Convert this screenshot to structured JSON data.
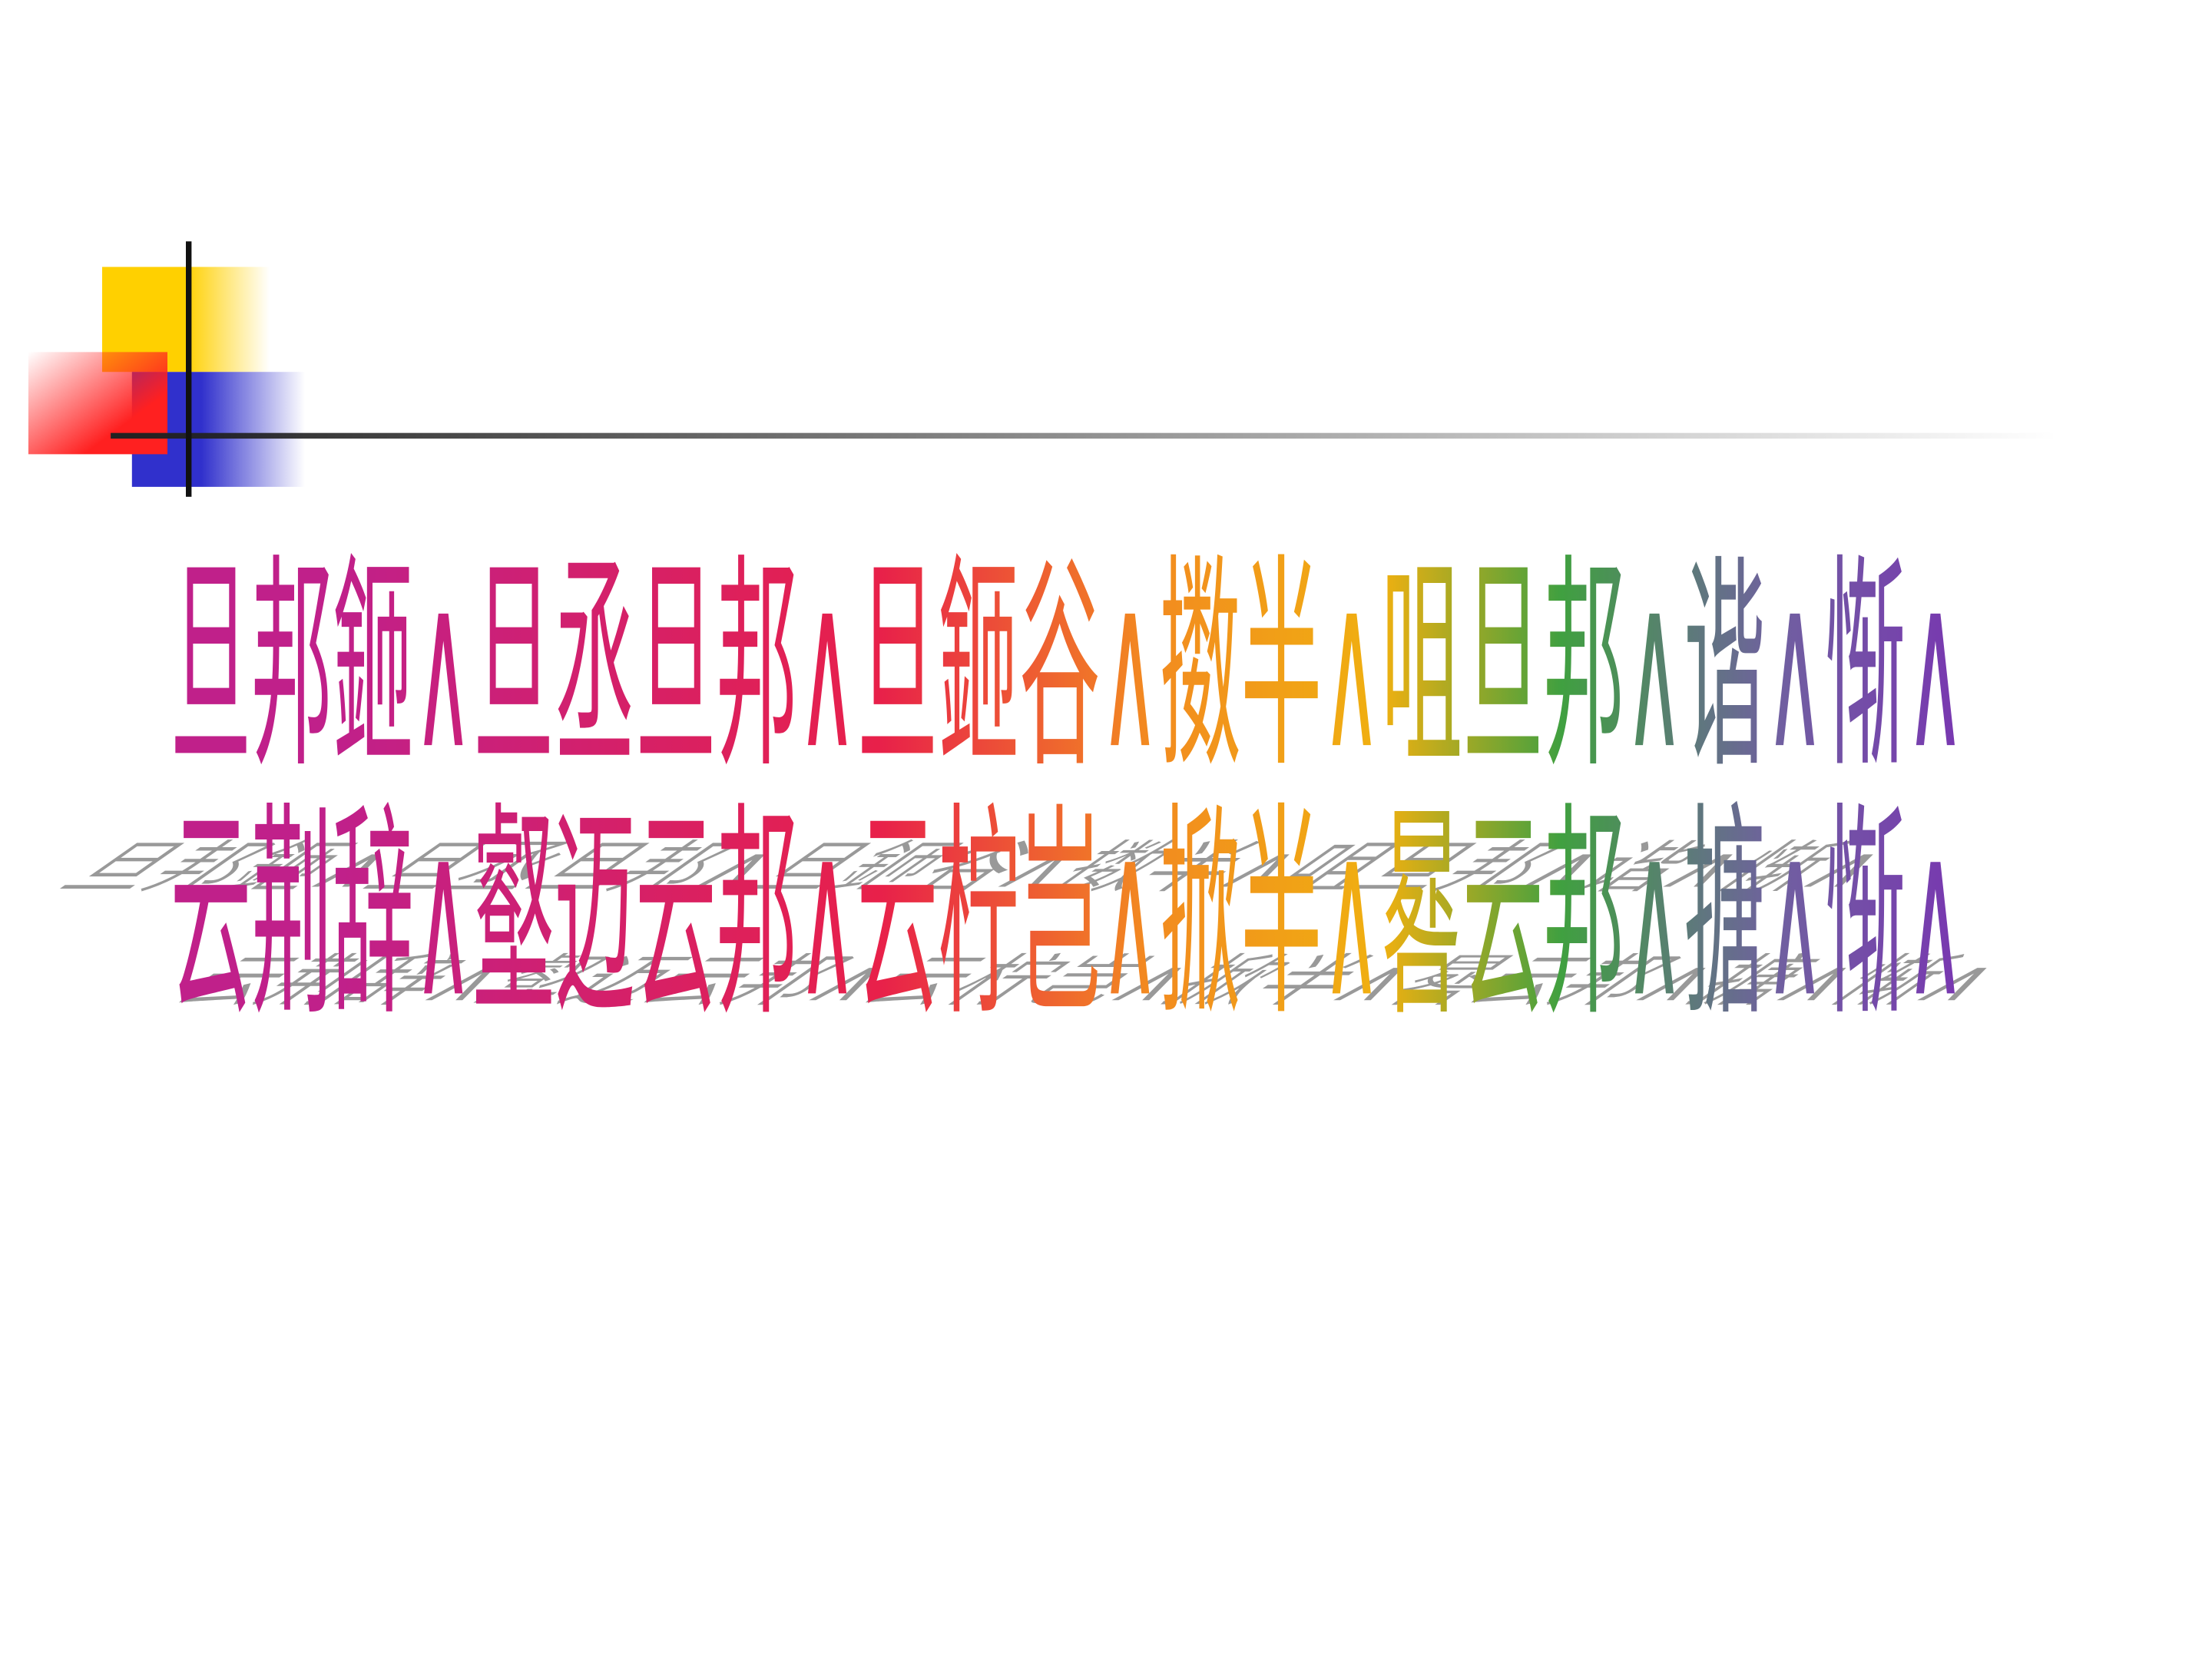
{
  "slide": {
    "lines": [
      "旦邦鉔∧旦丞旦邦∧旦鉔谷∧擞半∧咀旦邦∧谐∧惭∧",
      "云荆辞∧壑迈云邦∧云柠岂∧掀半∧晷云邦∧搪∧惭∧"
    ]
  }
}
